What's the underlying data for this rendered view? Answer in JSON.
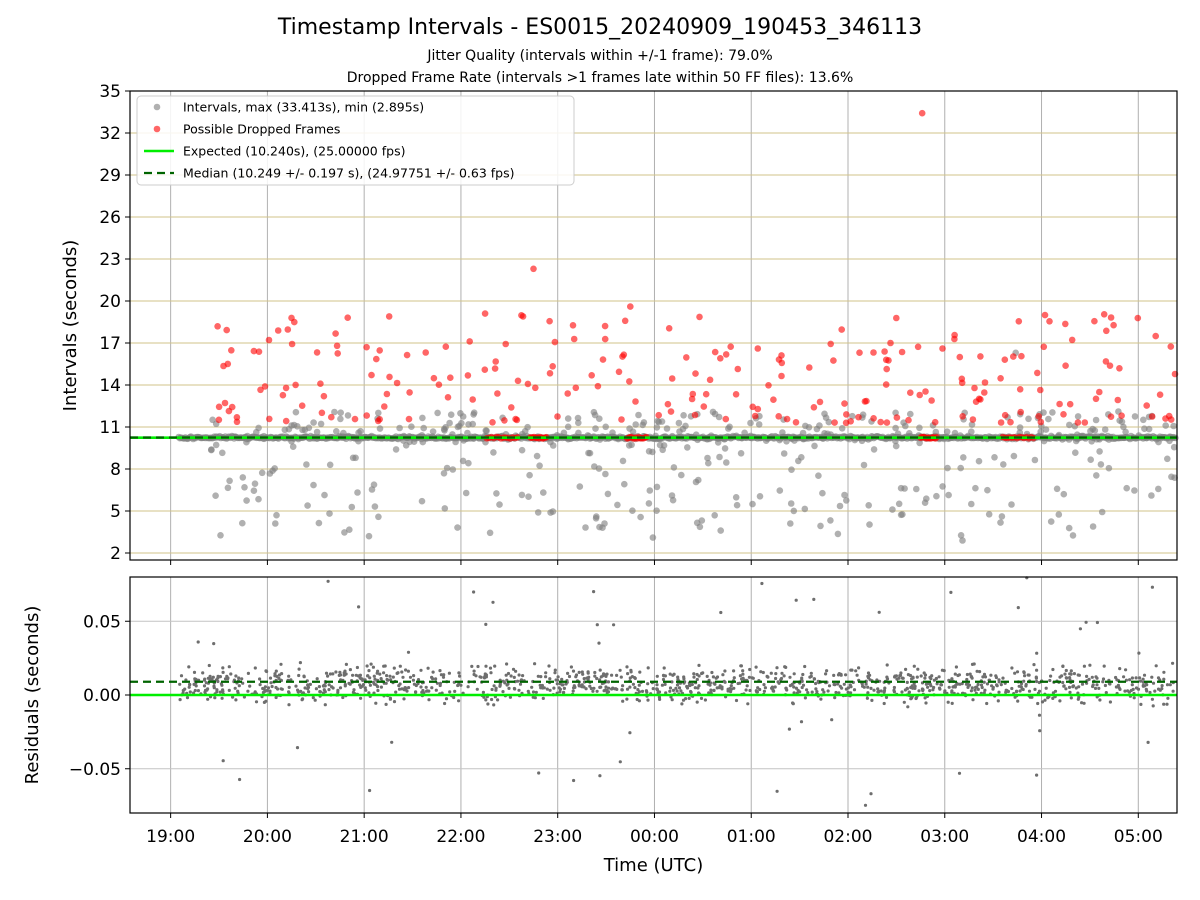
{
  "chart_data": [
    {
      "type": "scatter",
      "title": "Timestamp Intervals - ES0015_20240909_190453_346113",
      "subtitle_1": "Jitter Quality (intervals within +/-1 frame): 79.0%",
      "subtitle_2": "Dropped Frame Rate (intervals >1 frames late within 50 FF files): 13.6%",
      "xlabel": "",
      "ylabel": "Intervals (seconds)",
      "x_ticks": [
        "19:00",
        "20:00",
        "21:00",
        "22:00",
        "23:00",
        "00:00",
        "01:00",
        "02:00",
        "03:00",
        "04:00",
        "05:00"
      ],
      "x_range_hours": [
        18.58,
        29.4
      ],
      "ylim": [
        1.5,
        35
      ],
      "y_ticks": [
        2,
        5,
        8,
        11,
        14,
        17,
        20,
        23,
        26,
        29,
        32,
        35
      ],
      "grid": true,
      "legend_position": "top-left",
      "series": [
        {
          "name": "Intervals, max (33.413s), min (2.895s)",
          "kind": "points",
          "color": "#808080",
          "max": 33.413,
          "min": 2.895,
          "dense_band_value": 10.24,
          "dense_band_x_range": [
            "19:05",
            "05:23"
          ]
        },
        {
          "name": "Possible Dropped Frames",
          "kind": "points",
          "color": "#ff0000",
          "clusters_at_10.24": [
            [
              "22:16",
              "22:35"
            ],
            [
              "22:43",
              "22:53"
            ],
            [
              "23:43",
              "23:55"
            ],
            [
              "02:45",
              "02:55"
            ],
            [
              "03:36",
              "03:55"
            ]
          ]
        },
        {
          "name": "Expected (10.240s), (25.00000 fps)",
          "kind": "hline",
          "value": 10.24,
          "color": "#00ee00"
        },
        {
          "name": "Median (10.249 +/- 0.197 s), (24.97751 +/- 0.63 fps)",
          "kind": "hline",
          "value": 10.249,
          "color": "#006400"
        }
      ]
    },
    {
      "type": "scatter",
      "xlabel": "Time (UTC)",
      "ylabel": "Residuals (seconds)",
      "x_ticks": [
        "19:00",
        "20:00",
        "21:00",
        "22:00",
        "23:00",
        "00:00",
        "01:00",
        "02:00",
        "03:00",
        "04:00",
        "05:00"
      ],
      "x_range_hours": [
        18.58,
        29.4
      ],
      "ylim": [
        -0.08,
        0.08
      ],
      "y_ticks": [
        0.05,
        0.0,
        -0.05
      ],
      "y_tick_labels": [
        "0.05",
        "0.00",
        "−0.05"
      ],
      "grid": true,
      "series": [
        {
          "kind": "points",
          "color": "#6e6e6e",
          "typical_center": 0.007,
          "typical_spread": 0.01
        },
        {
          "kind": "hline",
          "value": 0.0,
          "color": "#00ee00"
        },
        {
          "kind": "hline",
          "value": 0.009,
          "color": "#006400"
        }
      ]
    }
  ]
}
